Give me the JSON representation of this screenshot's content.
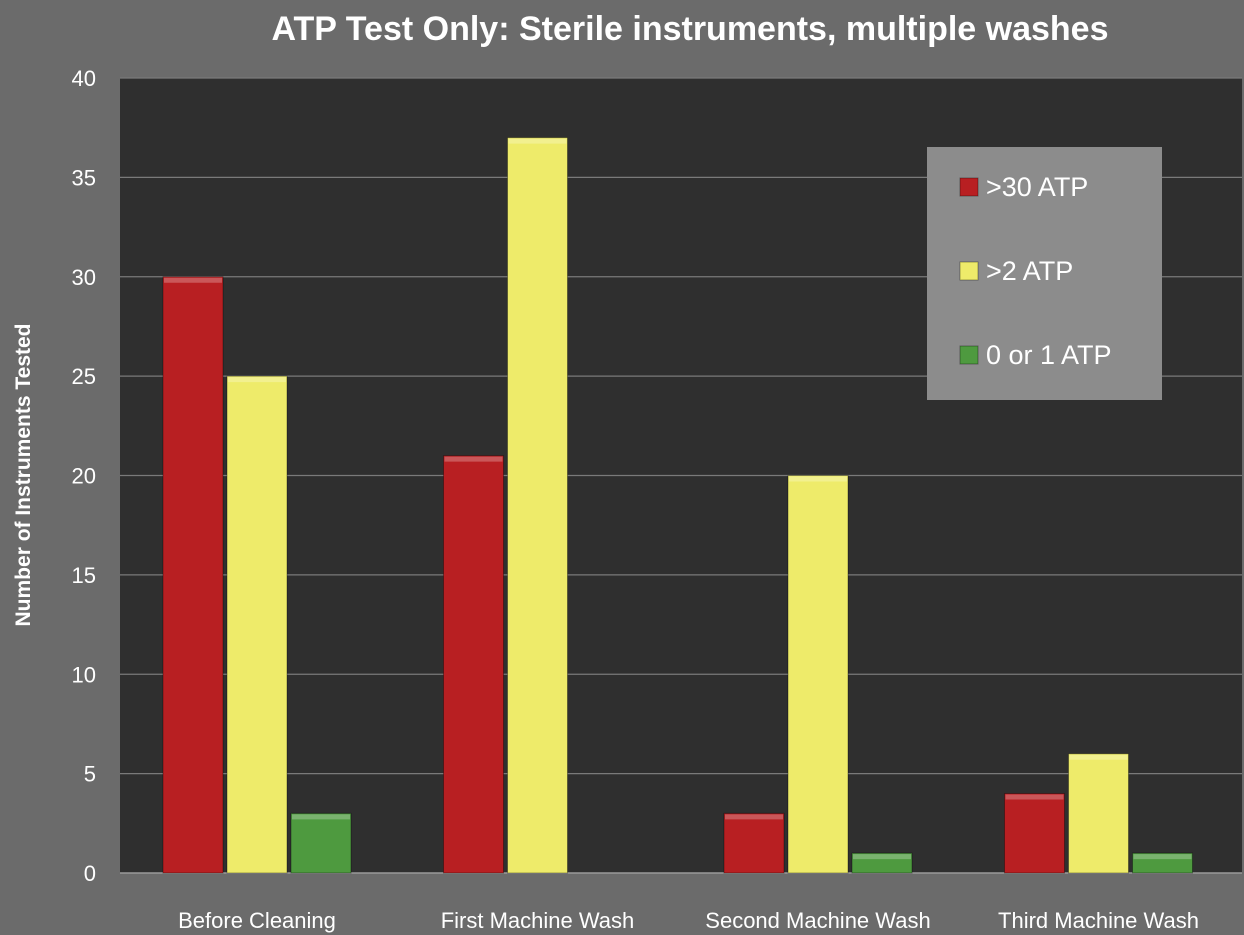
{
  "chart_data": {
    "type": "bar",
    "title": "ATP Test Only: Sterile instruments, multiple washes",
    "xlabel": "",
    "ylabel": "Number of Instruments Tested",
    "ylim": [
      0,
      40
    ],
    "yticks": [
      0,
      5,
      10,
      15,
      20,
      25,
      30,
      35,
      40
    ],
    "grid": true,
    "legend_position": "top-right",
    "categories": [
      "Before Cleaning",
      "First Machine Wash",
      "Second Machine Wash",
      "Third Machine Wash"
    ],
    "series": [
      {
        "name": ">30 ATP",
        "color": "#b81f22",
        "values": [
          30,
          21,
          3,
          4
        ]
      },
      {
        "name": ">2 ATP",
        "color": "#eeeb6a",
        "values": [
          25,
          37,
          20,
          6
        ]
      },
      {
        "name": "0 or 1 ATP",
        "color": "#4e9a3f",
        "values": [
          3,
          0,
          1,
          1
        ]
      }
    ],
    "colors": {
      "background": "#6b6b6b",
      "plot_area": "#2f2f2f",
      "legend_box": "#8c8c8c",
      "text": "#ffffff",
      "grid": "#7a7a7a"
    }
  }
}
